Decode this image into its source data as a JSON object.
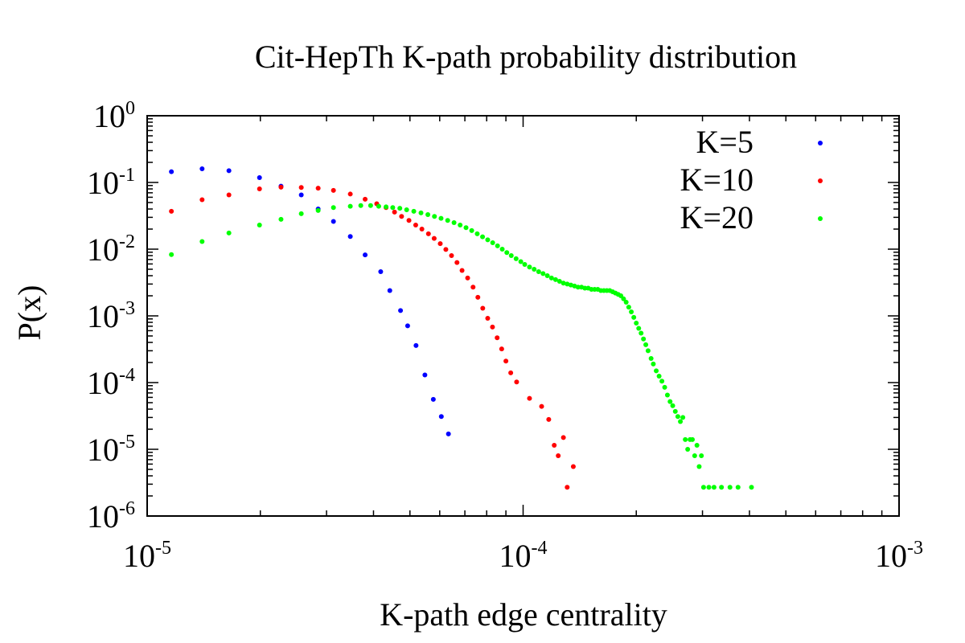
{
  "chart_data": {
    "type": "scatter",
    "title": "Cit-HepTh K-path probability distribution",
    "xlabel": "K-path edge centrality",
    "ylabel": "P(x)",
    "xscale": "log",
    "yscale": "log",
    "xlim": [
      1e-05,
      0.001
    ],
    "ylim": [
      1e-06,
      1
    ],
    "grid": false,
    "legend_position": "top-right",
    "x_ticks": [
      {
        "base": "10",
        "exp": "-5",
        "value": 1e-05
      },
      {
        "base": "10",
        "exp": "-4",
        "value": 0.0001
      },
      {
        "base": "10",
        "exp": "-3",
        "value": 0.001
      }
    ],
    "y_ticks": [
      {
        "base": "10",
        "exp": "0",
        "value": 1
      },
      {
        "base": "10",
        "exp": "-1",
        "value": 0.1
      },
      {
        "base": "10",
        "exp": "-2",
        "value": 0.01
      },
      {
        "base": "10",
        "exp": "-3",
        "value": 0.001
      },
      {
        "base": "10",
        "exp": "-4",
        "value": 0.0001
      },
      {
        "base": "10",
        "exp": "-5",
        "value": 1e-05
      },
      {
        "base": "10",
        "exp": "-6",
        "value": 1e-06
      }
    ],
    "series": [
      {
        "name": "K=5",
        "color": "#0000ff",
        "points": [
          [
            1.16e-05,
            0.145
          ],
          [
            1.4e-05,
            0.16
          ],
          [
            1.65e-05,
            0.15
          ],
          [
            1.99e-05,
            0.118
          ],
          [
            2.27e-05,
            0.088
          ],
          [
            2.57e-05,
            0.065
          ],
          [
            2.85e-05,
            0.04
          ],
          [
            3.13e-05,
            0.026
          ],
          [
            3.47e-05,
            0.0155
          ],
          [
            3.8e-05,
            0.0082
          ],
          [
            4.18e-05,
            0.0046
          ],
          [
            4.42e-05,
            0.0024
          ],
          [
            4.72e-05,
            0.0012
          ],
          [
            4.93e-05,
            0.00071
          ],
          [
            5.19e-05,
            0.00036
          ],
          [
            5.48e-05,
            0.00013
          ],
          [
            5.77e-05,
            5.6e-05
          ],
          [
            6.06e-05,
            3.1e-05
          ],
          [
            6.33e-05,
            1.7e-05
          ]
        ]
      },
      {
        "name": "K=10",
        "color": "#ff0000",
        "points": [
          [
            1.16e-05,
            0.037
          ],
          [
            1.4e-05,
            0.055
          ],
          [
            1.65e-05,
            0.065
          ],
          [
            1.99e-05,
            0.08
          ],
          [
            2.27e-05,
            0.085
          ],
          [
            2.57e-05,
            0.084
          ],
          [
            2.85e-05,
            0.082
          ],
          [
            3.13e-05,
            0.076
          ],
          [
            3.47e-05,
            0.067
          ],
          [
            3.8e-05,
            0.056
          ],
          [
            4.08e-05,
            0.048
          ],
          [
            4.32e-05,
            0.042
          ],
          [
            4.55e-05,
            0.036
          ],
          [
            4.75e-05,
            0.031
          ],
          [
            4.97e-05,
            0.027
          ],
          [
            5.18e-05,
            0.023
          ],
          [
            5.38e-05,
            0.02
          ],
          [
            5.6e-05,
            0.017
          ],
          [
            5.8e-05,
            0.0145
          ],
          [
            6.02e-05,
            0.0121
          ],
          [
            6.23e-05,
            0.0099
          ],
          [
            6.45e-05,
            0.008
          ],
          [
            6.67e-05,
            0.0063
          ],
          [
            6.88e-05,
            0.0048
          ],
          [
            7.12e-05,
            0.0037
          ],
          [
            7.36e-05,
            0.0027
          ],
          [
            7.58e-05,
            0.0019
          ],
          [
            7.81e-05,
            0.0013
          ],
          [
            8.05e-05,
            0.00092
          ],
          [
            8.29e-05,
            0.00068
          ],
          [
            8.53e-05,
            0.00047
          ],
          [
            8.77e-05,
            0.00032
          ],
          [
            9e-05,
            0.00021
          ],
          [
            9.27e-05,
            0.00014
          ],
          [
            9.61e-05,
            0.000102
          ],
          [
            0.000104,
            5.8e-05
          ],
          [
            0.000112,
            4.4e-05
          ],
          [
            0.000117,
            2.8e-05
          ],
          [
            0.000121,
            1.15e-05
          ],
          [
            0.000124,
            8e-06
          ],
          [
            0.000128,
            1.5e-05
          ],
          [
            0.000131,
            2.7e-06
          ],
          [
            0.000136,
            5.5e-06
          ]
        ]
      },
      {
        "name": "K=20",
        "color": "#00ff00",
        "points": [
          [
            1.16e-05,
            0.0083
          ],
          [
            1.4e-05,
            0.013
          ],
          [
            1.65e-05,
            0.0175
          ],
          [
            1.99e-05,
            0.023
          ],
          [
            2.27e-05,
            0.028
          ],
          [
            2.57e-05,
            0.034
          ],
          [
            2.85e-05,
            0.038
          ],
          [
            3.13e-05,
            0.042
          ],
          [
            3.47e-05,
            0.044
          ],
          [
            3.7e-05,
            0.045
          ],
          [
            3.93e-05,
            0.045
          ],
          [
            4.13e-05,
            0.044
          ],
          [
            4.32e-05,
            0.043
          ],
          [
            4.5e-05,
            0.042
          ],
          [
            4.7e-05,
            0.041
          ],
          [
            4.9e-05,
            0.039
          ],
          [
            5.12e-05,
            0.037
          ],
          [
            5.35e-05,
            0.035
          ],
          [
            5.58e-05,
            0.033
          ],
          [
            5.81e-05,
            0.031
          ],
          [
            6.05e-05,
            0.029
          ],
          [
            6.3e-05,
            0.027
          ],
          [
            6.55e-05,
            0.025
          ],
          [
            6.8e-05,
            0.023
          ],
          [
            7.05e-05,
            0.021
          ],
          [
            7.3e-05,
            0.019
          ],
          [
            7.55e-05,
            0.017
          ],
          [
            7.8e-05,
            0.0153
          ],
          [
            8.05e-05,
            0.0138
          ],
          [
            8.3e-05,
            0.0125
          ],
          [
            8.55e-05,
            0.0112
          ],
          [
            8.8e-05,
            0.01
          ],
          [
            9.05e-05,
            0.0089
          ],
          [
            9.3e-05,
            0.008
          ],
          [
            9.58e-05,
            0.0072
          ],
          [
            9.86e-05,
            0.0065
          ],
          [
            0.000101,
            0.0059
          ],
          [
            0.000104,
            0.0054
          ],
          [
            0.000107,
            0.005
          ],
          [
            0.00011,
            0.0046
          ],
          [
            0.000113,
            0.0043
          ],
          [
            0.000116,
            0.004
          ],
          [
            0.000119,
            0.0037
          ],
          [
            0.000122,
            0.0035
          ],
          [
            0.000125,
            0.0033
          ],
          [
            0.000128,
            0.0031
          ],
          [
            0.000131,
            0.003
          ],
          [
            0.000134,
            0.0029
          ],
          [
            0.000137,
            0.0028
          ],
          [
            0.00014,
            0.0027
          ],
          [
            0.000143,
            0.0027
          ],
          [
            0.000146,
            0.0026
          ],
          [
            0.000149,
            0.0026
          ],
          [
            0.000152,
            0.0025
          ],
          [
            0.000155,
            0.0025
          ],
          [
            0.000158,
            0.0025
          ],
          [
            0.000161,
            0.0024
          ],
          [
            0.000164,
            0.0024
          ],
          [
            0.000167,
            0.0024
          ],
          [
            0.00017,
            0.0024
          ],
          [
            0.000173,
            0.0023
          ],
          [
            0.000176,
            0.0022
          ],
          [
            0.000179,
            0.0021
          ],
          [
            0.000182,
            0.002
          ],
          [
            0.000185,
            0.0018
          ],
          [
            0.000188,
            0.0016
          ],
          [
            0.000191,
            0.00135
          ],
          [
            0.000194,
            0.00115
          ],
          [
            0.000197,
            0.00095
          ],
          [
            0.0002,
            0.00078
          ],
          [
            0.000203,
            0.00065
          ],
          [
            0.000206,
            0.00055
          ],
          [
            0.000209,
            0.00045
          ],
          [
            0.000212,
            0.00037
          ],
          [
            0.000215,
            0.0003
          ],
          [
            0.000219,
            0.00023
          ],
          [
            0.000222,
            0.00019
          ],
          [
            0.000226,
            0.00015
          ],
          [
            0.00023,
            0.000125
          ],
          [
            0.000234,
            0.000105
          ],
          [
            0.000238,
            8.5e-05
          ],
          [
            0.000242,
            6.5e-05
          ],
          [
            0.000246,
            5.2e-05
          ],
          [
            0.00025,
            4.5e-05
          ],
          [
            0.000254,
            3.7e-05
          ],
          [
            0.000258,
            3.1e-05
          ],
          [
            0.000262,
            2.6e-05
          ],
          [
            0.000266,
            3e-05
          ],
          [
            0.00027,
            1.4e-05
          ],
          [
            0.000274,
            1e-05
          ],
          [
            0.000278,
            1.4e-05
          ],
          [
            0.000282,
            1.4e-05
          ],
          [
            0.000286,
            8e-06
          ],
          [
            0.00029,
            1.15e-05
          ],
          [
            0.000294,
            5.5e-06
          ],
          [
            0.000298,
            8e-06
          ],
          [
            0.000302,
            2.7e-06
          ],
          [
            0.000312,
            2.7e-06
          ],
          [
            0.000322,
            2.7e-06
          ],
          [
            0.000337,
            2.7e-06
          ],
          [
            0.000355,
            2.7e-06
          ],
          [
            0.000373,
            2.7e-06
          ],
          [
            0.000405,
            2.7e-06
          ]
        ]
      }
    ]
  }
}
